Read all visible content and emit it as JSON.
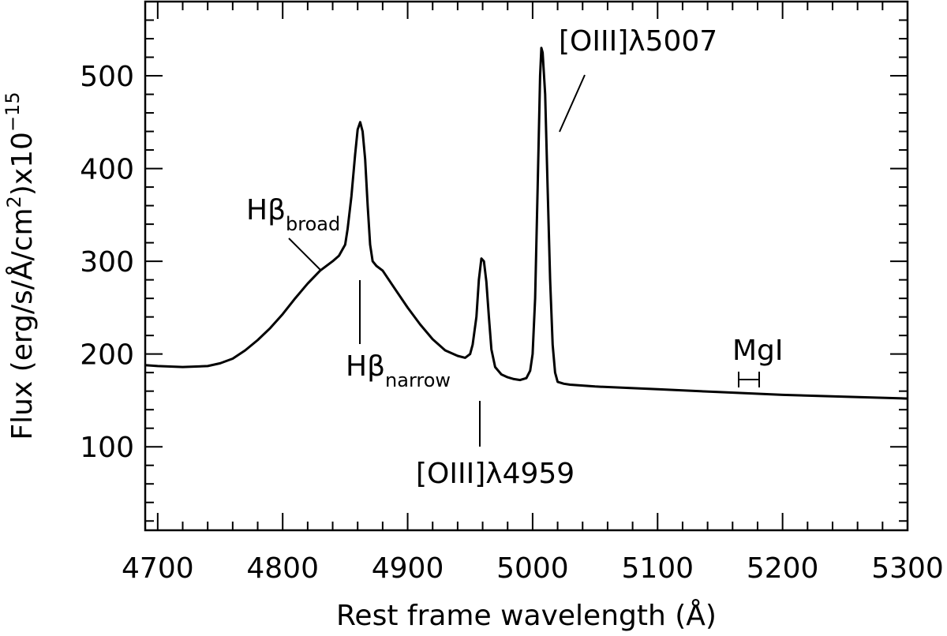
{
  "chart_data": {
    "type": "line",
    "title": "",
    "xlabel": "Rest frame wavelength (Å)",
    "ylabel": "Flux (erg/s/Å/cm²)x10⁻¹⁵",
    "ylabel_parts": {
      "main": "Flux (erg/s/Å/cm",
      "sup1": "2",
      "mid": ")x10",
      "sup2": "−15"
    },
    "xlim": [
      4690,
      5300
    ],
    "ylim": [
      10,
      580
    ],
    "x_ticks": [
      4700,
      4800,
      4900,
      5000,
      5100,
      5200,
      5300
    ],
    "y_ticks": [
      100,
      200,
      300,
      400,
      500
    ],
    "x_minor_step": 20,
    "y_minor_step": 20,
    "grid": false,
    "series": [
      {
        "x": [
          4690,
          4700,
          4720,
          4740,
          4750,
          4760,
          4770,
          4780,
          4790,
          4800,
          4810,
          4820,
          4830,
          4840,
          4845,
          4850,
          4852,
          4855,
          4858,
          4860,
          4862,
          4864,
          4866,
          4868,
          4870,
          4872,
          4875,
          4880,
          4890,
          4900,
          4910,
          4920,
          4930,
          4940,
          4946,
          4950,
          4952,
          4955,
          4957,
          4959,
          4961,
          4963,
          4965,
          4967,
          4970,
          4975,
          4980,
          4985,
          4990,
          4995,
          4998,
          5000,
          5002,
          5004,
          5006,
          5007,
          5008,
          5010,
          5012,
          5014,
          5016,
          5018,
          5020,
          5025,
          5030,
          5050,
          5100,
          5150,
          5200,
          5250,
          5300
        ],
        "y": [
          188,
          187,
          186,
          187,
          190,
          195,
          204,
          215,
          228,
          243,
          260,
          276,
          290,
          300,
          306,
          318,
          335,
          370,
          415,
          442,
          450,
          440,
          410,
          360,
          318,
          300,
          295,
          290,
          270,
          250,
          232,
          216,
          204,
          198,
          196,
          200,
          210,
          240,
          280,
          303,
          300,
          278,
          240,
          205,
          186,
          178,
          175,
          173,
          172,
          174,
          182,
          200,
          260,
          380,
          500,
          530,
          525,
          480,
          380,
          280,
          210,
          180,
          170,
          168,
          167,
          165,
          162,
          159,
          156,
          154,
          152
        ]
      }
    ],
    "annotations": {
      "oiii5007": "[OIII]λ5007",
      "hbeta_broad_main": "Hβ",
      "hbeta_broad_sub": "broad",
      "hbeta_narrow_main": "Hβ",
      "hbeta_narrow_sub": "narrow",
      "oiii4959": "[OIII]λ4959",
      "mgi": "MgI"
    }
  }
}
